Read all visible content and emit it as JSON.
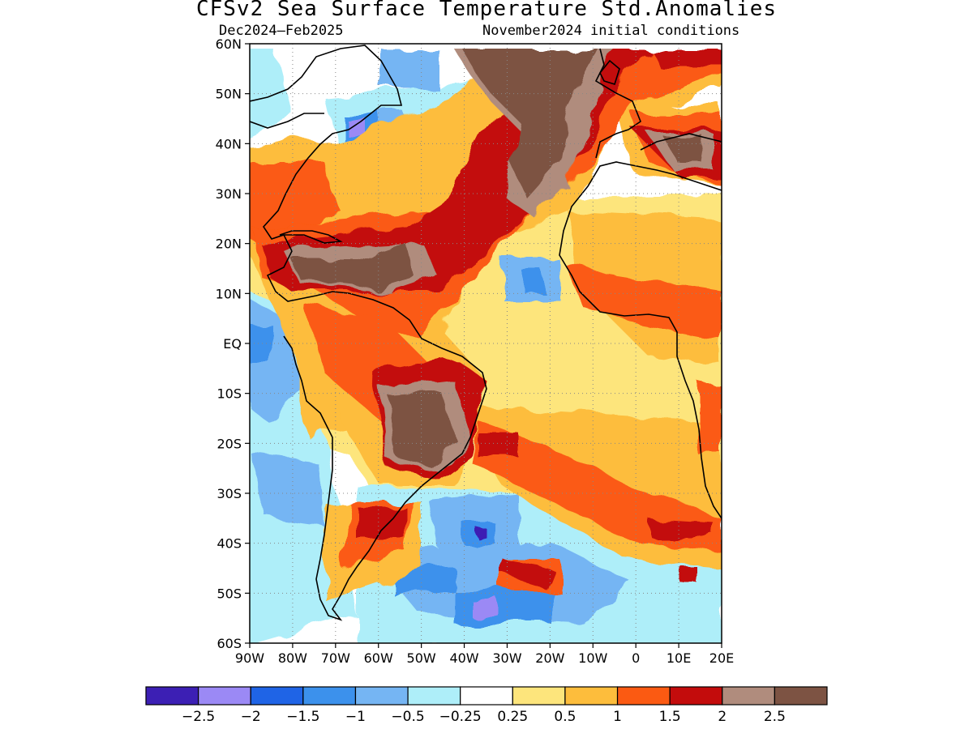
{
  "title": "CFSv2 Sea Surface Temperature Std.Anomalies",
  "subtitle_left": "Dec2024–Feb2025",
  "subtitle_right": "November2024 initial conditions",
  "map": {
    "region": "Atlantic Ocean, South America and Africa",
    "lon_range": [
      -90,
      20
    ],
    "lat_range": [
      -60,
      60
    ],
    "lat_ticks": [
      "60N",
      "50N",
      "40N",
      "30N",
      "20N",
      "10N",
      "EQ",
      "10S",
      "20S",
      "30S",
      "40S",
      "50S",
      "60S"
    ],
    "lon_ticks": [
      "90W",
      "80W",
      "70W",
      "60W",
      "50W",
      "40W",
      "30W",
      "20W",
      "10W",
      "0",
      "10E",
      "20E"
    ],
    "grid": "dotted"
  },
  "colorbar": {
    "colors": [
      "#3c1fb4",
      "#9b89f5",
      "#1f64e6",
      "#3c91ec",
      "#75b5f3",
      "#aeeef9",
      "#ffffff",
      "#fde57c",
      "#fdbd3c",
      "#fb5a12",
      "#c30c0c",
      "#b08c7d",
      "#7d5343"
    ],
    "labels": [
      "−2.5",
      "−2",
      "−1.5",
      "−1",
      "−0.5",
      "−0.25",
      "0.25",
      "0.5",
      "1",
      "1.5",
      "2",
      "2.5"
    ]
  }
}
